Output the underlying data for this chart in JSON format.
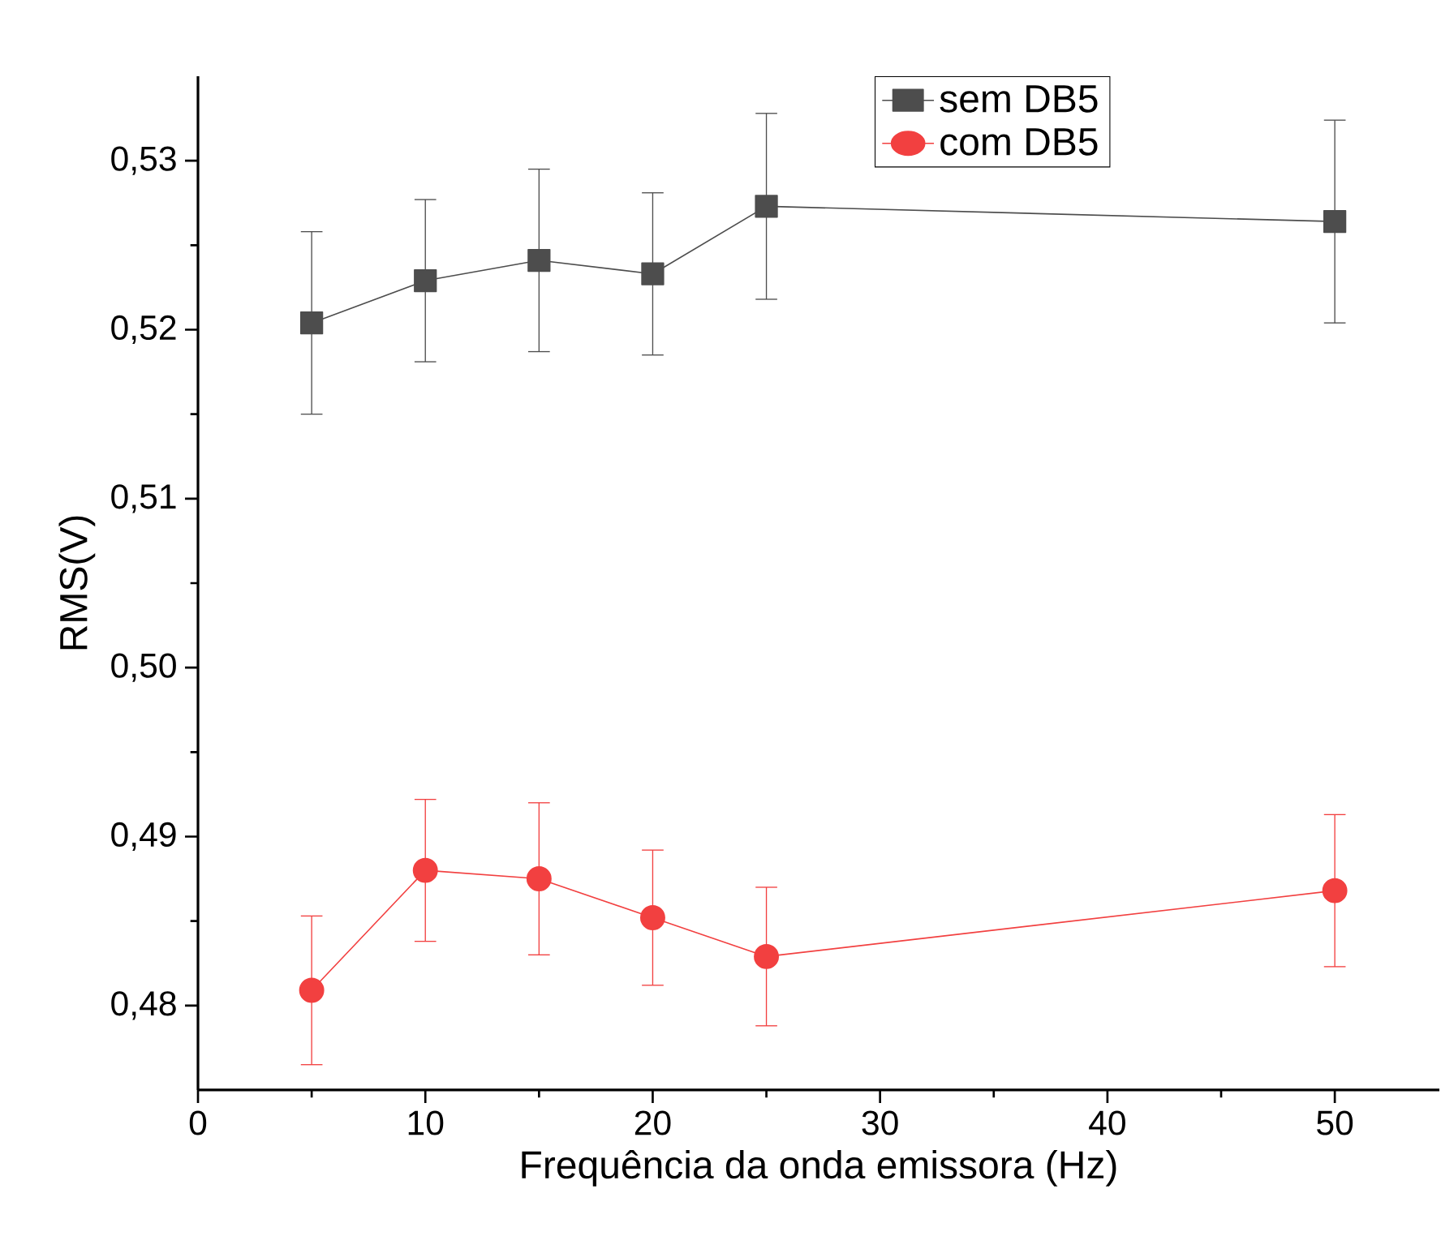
{
  "chart_data": {
    "type": "line",
    "xlabel": "Frequência da onda emissora (Hz)",
    "ylabel": "RMS(V)",
    "xlim": [
      0,
      54.6
    ],
    "xticks": [
      0,
      10,
      20,
      30,
      40,
      50
    ],
    "ylim": [
      0.475,
      0.535
    ],
    "yticks": [
      {
        "value": 0.48,
        "label": "0,48"
      },
      {
        "value": 0.49,
        "label": "0,49"
      },
      {
        "value": 0.5,
        "label": "0,50"
      },
      {
        "value": 0.51,
        "label": "0,51"
      },
      {
        "value": 0.52,
        "label": "0,52"
      },
      {
        "value": 0.53,
        "label": "0,53"
      }
    ],
    "legend": "top",
    "grid": false,
    "line_style": "solid",
    "x": [
      5,
      10,
      15,
      20,
      25,
      50
    ],
    "series": [
      {
        "name": "sem DB5",
        "color": "#4d4d4d",
        "marker": "square",
        "values": [
          0.5204,
          0.5229,
          0.5241,
          0.5233,
          0.5273,
          0.5264
        ],
        "errors": [
          0.0054,
          0.0048,
          0.0054,
          0.0048,
          0.0055,
          0.006
        ]
      },
      {
        "name": "com DB5",
        "color": "#f24040",
        "marker": "circle",
        "values": [
          0.4809,
          0.488,
          0.4875,
          0.4852,
          0.4829,
          0.4868
        ],
        "errors": [
          0.0044,
          0.0042,
          0.0045,
          0.004,
          0.0041,
          0.0045
        ]
      }
    ]
  }
}
